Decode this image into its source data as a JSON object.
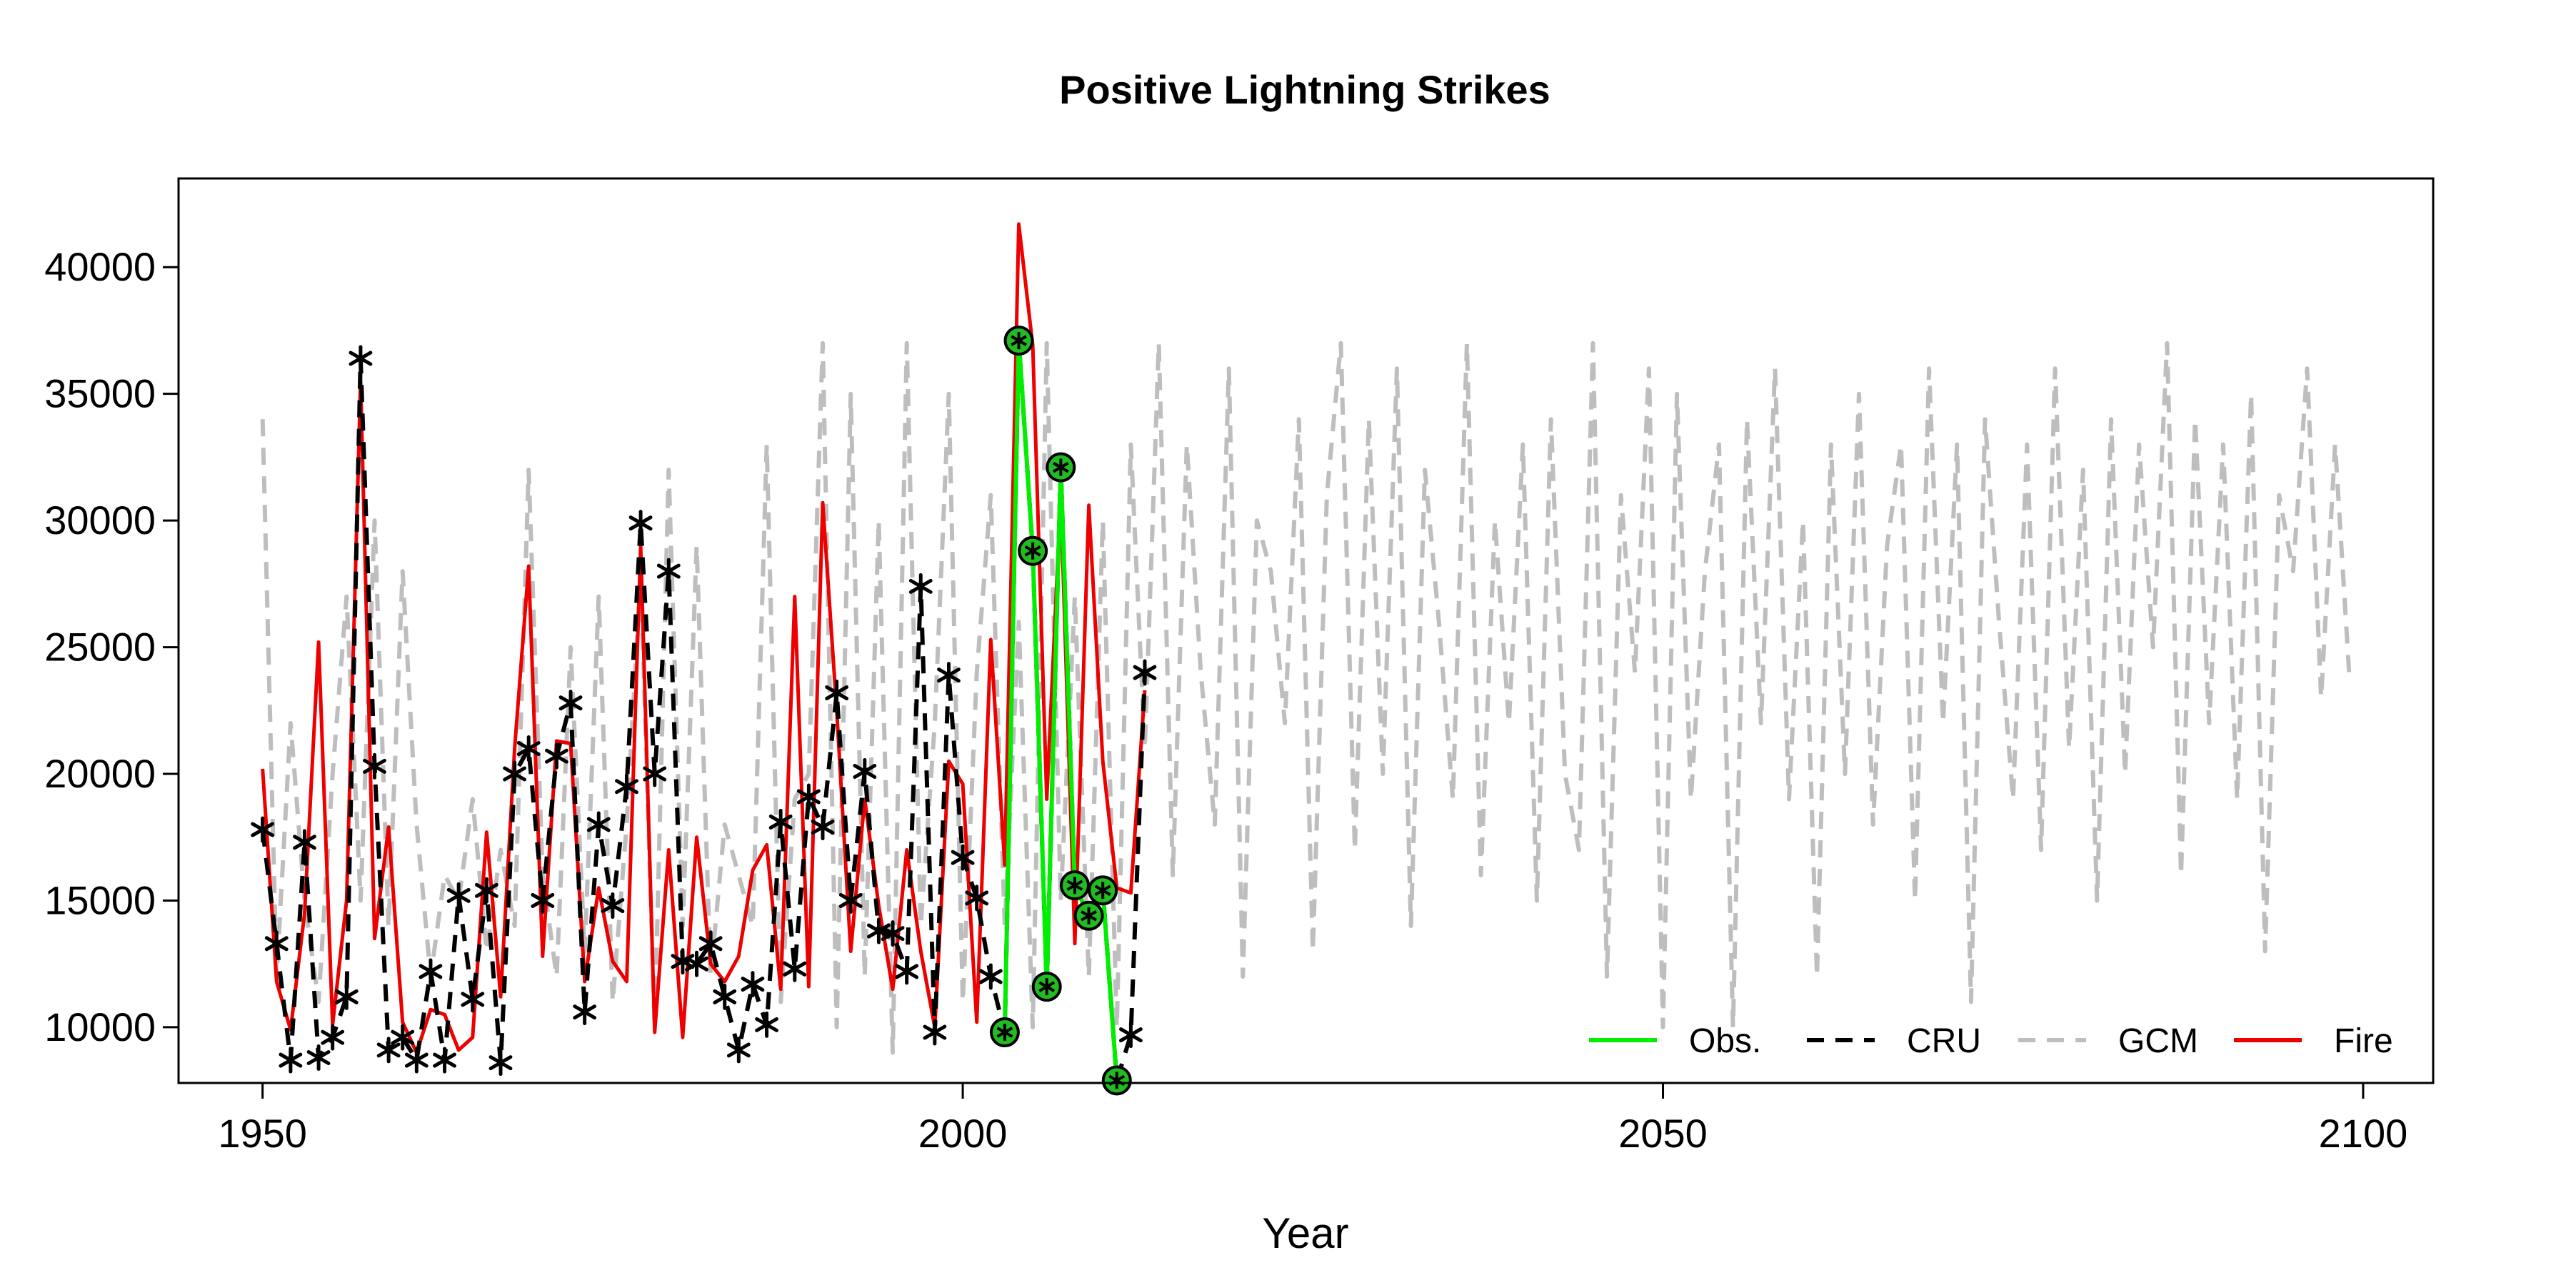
{
  "chart_data": {
    "type": "line",
    "title": "Positive Lightning Strikes",
    "xlabel": "Year",
    "ylabel": "",
    "xlim": [
      1944,
      2105
    ],
    "ylim": [
      7800,
      43500
    ],
    "xticks": [
      1950,
      2000,
      2050,
      2100
    ],
    "yticks": [
      10000,
      15000,
      20000,
      25000,
      30000,
      35000,
      40000
    ],
    "grid": false,
    "legend_position": "bottom-right",
    "colors": {
      "obs": "#00ee00",
      "cru": "#000000",
      "gcm": "#bebebe",
      "fire": "#ee0000"
    },
    "legend": [
      {
        "key": "obs",
        "label": "Obs.",
        "style": "solid"
      },
      {
        "key": "cru",
        "label": "CRU",
        "style": "dashed"
      },
      {
        "key": "gcm",
        "label": "GCM",
        "style": "dashed"
      },
      {
        "key": "fire",
        "label": "Fire",
        "style": "solid"
      }
    ],
    "series": [
      {
        "key": "gcm",
        "name": "GCM",
        "style": "dashed",
        "x": [
          1950,
          1951,
          1952,
          1953,
          1954,
          1955,
          1956,
          1957,
          1958,
          1959,
          1960,
          1961,
          1962,
          1963,
          1964,
          1965,
          1966,
          1967,
          1968,
          1969,
          1970,
          1971,
          1972,
          1973,
          1974,
          1975,
          1976,
          1977,
          1978,
          1979,
          1980,
          1981,
          1982,
          1983,
          1984,
          1985,
          1986,
          1987,
          1988,
          1989,
          1990,
          1991,
          1992,
          1993,
          1994,
          1995,
          1996,
          1997,
          1998,
          1999,
          2000,
          2001,
          2002,
          2003,
          2004,
          2005,
          2006,
          2007,
          2008,
          2009,
          2010,
          2011,
          2012,
          2013,
          2014,
          2015,
          2016,
          2017,
          2018,
          2019,
          2020,
          2021,
          2022,
          2023,
          2024,
          2025,
          2026,
          2027,
          2028,
          2029,
          2030,
          2031,
          2032,
          2033,
          2034,
          2035,
          2036,
          2037,
          2038,
          2039,
          2040,
          2041,
          2042,
          2043,
          2044,
          2045,
          2046,
          2047,
          2048,
          2049,
          2050,
          2051,
          2052,
          2053,
          2054,
          2055,
          2056,
          2057,
          2058,
          2059,
          2060,
          2061,
          2062,
          2063,
          2064,
          2065,
          2066,
          2067,
          2068,
          2069,
          2070,
          2071,
          2072,
          2073,
          2074,
          2075,
          2076,
          2077,
          2078,
          2079,
          2080,
          2081,
          2082,
          2083,
          2084,
          2085,
          2086,
          2087,
          2088,
          2089,
          2090,
          2091,
          2092,
          2093,
          2094,
          2095,
          2096,
          2097,
          2098,
          2099
        ],
        "y": [
          34000,
          12000,
          22000,
          15000,
          11000,
          20000,
          27000,
          15000,
          30000,
          14000,
          28000,
          18000,
          12000,
          16000,
          15000,
          19000,
          13000,
          17000,
          14000,
          32000,
          16000,
          12000,
          25000,
          13000,
          27000,
          11000,
          18000,
          28000,
          10000,
          32000,
          14000,
          29000,
          12000,
          18000,
          16000,
          14000,
          33000,
          11000,
          19000,
          20000,
          37000,
          10000,
          35000,
          12000,
          30000,
          9000,
          37000,
          14000,
          22000,
          35000,
          11000,
          24000,
          31000,
          14000,
          26000,
          10000,
          37000,
          15000,
          27000,
          12000,
          30000,
          10000,
          33000,
          21000,
          37000,
          16000,
          33000,
          24000,
          18000,
          36000,
          12000,
          30000,
          28000,
          22000,
          34000,
          13000,
          31000,
          37000,
          17000,
          34000,
          20000,
          36000,
          14000,
          32000,
          26000,
          19000,
          37000,
          16000,
          30000,
          22000,
          33000,
          15000,
          34000,
          20000,
          17000,
          37000,
          12000,
          31000,
          24000,
          36000,
          10000,
          35000,
          19000,
          28000,
          33000,
          10000,
          34000,
          22000,
          36000,
          19000,
          30000,
          12000,
          33000,
          20000,
          35000,
          18000,
          29000,
          33000,
          15000,
          36000,
          22000,
          33000,
          11000,
          34000,
          26000,
          19000,
          33000,
          17000,
          36000,
          21000,
          32000,
          15000,
          34000,
          20000,
          33000,
          25000,
          37000,
          16000,
          34000,
          22000,
          33000,
          19000,
          35000,
          13000,
          31000,
          28000,
          36000,
          23000,
          33000,
          24000
        ]
      },
      {
        "key": "fire",
        "name": "Fire",
        "style": "solid",
        "x": [
          1950,
          1951,
          1952,
          1953,
          1954,
          1955,
          1956,
          1957,
          1958,
          1959,
          1960,
          1961,
          1962,
          1963,
          1964,
          1965,
          1966,
          1967,
          1968,
          1969,
          1970,
          1971,
          1972,
          1973,
          1974,
          1975,
          1976,
          1977,
          1978,
          1979,
          1980,
          1981,
          1982,
          1983,
          1984,
          1985,
          1986,
          1987,
          1988,
          1989,
          1990,
          1991,
          1992,
          1993,
          1994,
          1995,
          1996,
          1997,
          1998,
          1999,
          2000,
          2001,
          2002,
          2003,
          2004,
          2005,
          2006,
          2007,
          2008,
          2009,
          2010,
          2011,
          2012,
          2013
        ],
        "y": [
          20200,
          11800,
          9900,
          14500,
          25200,
          10100,
          15000,
          35500,
          13500,
          17900,
          10200,
          9000,
          10700,
          10500,
          9100,
          9600,
          17700,
          11200,
          21000,
          28200,
          12800,
          21300,
          21200,
          11800,
          15500,
          12600,
          11800,
          29000,
          9800,
          17000,
          9600,
          17500,
          12500,
          11800,
          12800,
          16200,
          17200,
          11500,
          27000,
          11600,
          30700,
          22500,
          13000,
          19000,
          14800,
          11500,
          17000,
          13000,
          10000,
          20500,
          19600,
          10200,
          25300,
          16400,
          41700,
          36900,
          19000,
          31000,
          13300,
          30600,
          20500,
          15500,
          15300,
          23300
        ]
      },
      {
        "key": "cru",
        "name": "CRU",
        "style": "dashed",
        "marker": "asterisk",
        "x": [
          1950,
          1951,
          1952,
          1953,
          1954,
          1955,
          1956,
          1957,
          1958,
          1959,
          1960,
          1961,
          1962,
          1963,
          1964,
          1965,
          1966,
          1967,
          1968,
          1969,
          1970,
          1971,
          1972,
          1973,
          1974,
          1975,
          1976,
          1977,
          1978,
          1979,
          1980,
          1981,
          1982,
          1983,
          1984,
          1985,
          1986,
          1987,
          1988,
          1989,
          1990,
          1991,
          1992,
          1993,
          1994,
          1995,
          1996,
          1997,
          1998,
          1999,
          2000,
          2001,
          2002,
          2003,
          2004,
          2005,
          2006,
          2007,
          2008,
          2009,
          2010,
          2011,
          2012,
          2013
        ],
        "y": [
          17800,
          13300,
          8700,
          17300,
          8800,
          9600,
          11200,
          36400,
          20300,
          9100,
          9600,
          8700,
          12200,
          8700,
          15200,
          11100,
          15400,
          8600,
          20000,
          21000,
          15000,
          20700,
          22800,
          10600,
          18000,
          14800,
          19500,
          29900,
          20000,
          28000,
          12600,
          12500,
          13300,
          11200,
          9100,
          11700,
          10100,
          18100,
          12300,
          19100,
          17900,
          23200,
          15000,
          20100,
          13800,
          13700,
          12200,
          27400,
          9800,
          23900,
          16700,
          15100,
          12000,
          9800,
          37100,
          28800,
          11600,
          32100,
          15600,
          14400,
          15400,
          7900,
          9700,
          24000
        ]
      },
      {
        "key": "obs",
        "name": "Obs.",
        "style": "solid",
        "marker": "circle",
        "x": [
          2003,
          2004,
          2005,
          2006,
          2007,
          2008,
          2009,
          2010,
          2011
        ],
        "y": [
          9800,
          37100,
          28800,
          11600,
          32100,
          15600,
          14400,
          15400,
          7900
        ]
      }
    ]
  }
}
